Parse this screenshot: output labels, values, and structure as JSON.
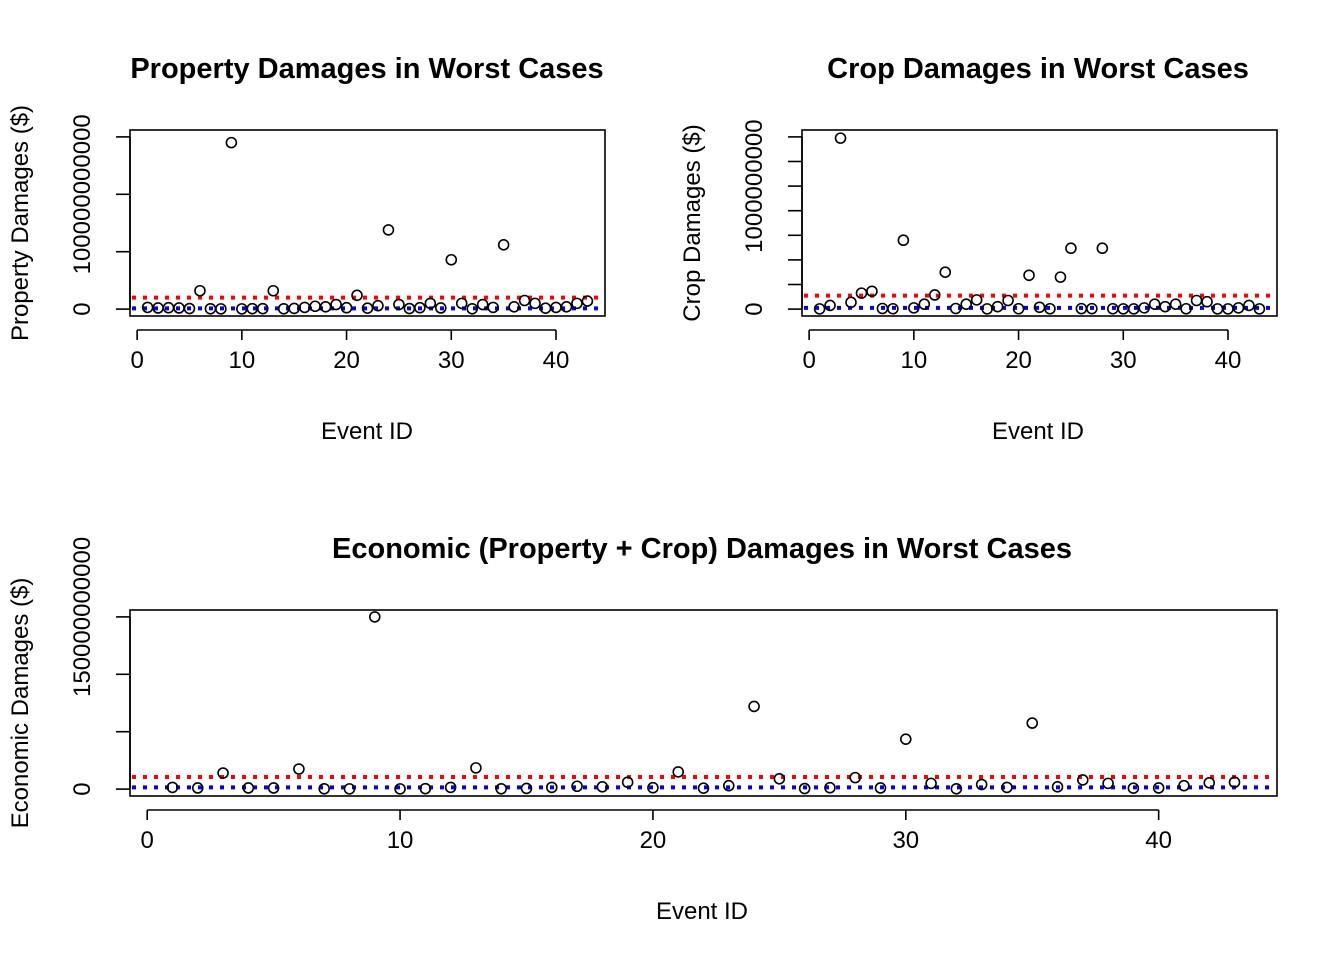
{
  "chart_data": [
    {
      "type": "scatter",
      "title": "Property Damages in Worst Cases",
      "xlabel": "Event ID",
      "ylabel": "Property Damages ($)",
      "x_ticks": [
        "0",
        "10",
        "20",
        "30",
        "40"
      ],
      "y_ticks": [
        "0",
        "100000000000"
      ],
      "x_tick_values": [
        0,
        10,
        20,
        30,
        40
      ],
      "y_tick_values": [
        0,
        50000000000,
        100000000000,
        150000000000
      ],
      "y_labeled_ticks": [
        0,
        100000000000
      ],
      "xlim": [
        1,
        43
      ],
      "ylim": [
        0,
        150000000000
      ],
      "grid": false,
      "series": [
        {
          "values": [
            [
              1,
              1500000000
            ],
            [
              2,
              1000000000
            ],
            [
              3,
              1200000000
            ],
            [
              4,
              1000000000
            ],
            [
              5,
              500000000
            ],
            [
              6,
              16000000000
            ],
            [
              7,
              300000000
            ],
            [
              8,
              200000000
            ],
            [
              9,
              145000000000
            ],
            [
              10,
              200000000
            ],
            [
              11,
              400000000
            ],
            [
              12,
              400000000
            ],
            [
              13,
              16000000000
            ],
            [
              14,
              300000000
            ],
            [
              15,
              600000000
            ],
            [
              16,
              1500000000
            ],
            [
              17,
              2500000000
            ],
            [
              18,
              2000000000
            ],
            [
              19,
              4000000000
            ],
            [
              20,
              1200000000
            ],
            [
              21,
              12000000000
            ],
            [
              22,
              800000000
            ],
            [
              23,
              3000000000
            ],
            [
              24,
              69000000000
            ],
            [
              25,
              4000000000
            ],
            [
              26,
              500000000
            ],
            [
              27,
              1200000000
            ],
            [
              28,
              5000000000
            ],
            [
              29,
              1000000000
            ],
            [
              30,
              43000000000
            ],
            [
              31,
              5000000000
            ],
            [
              32,
              300000000
            ],
            [
              33,
              4000000000
            ],
            [
              34,
              1500000000
            ],
            [
              35,
              56000000000
            ],
            [
              36,
              2000000000
            ],
            [
              37,
              7500000000
            ],
            [
              38,
              5000000000
            ],
            [
              39,
              800000000
            ],
            [
              40,
              1500000000
            ],
            [
              41,
              2000000000
            ],
            [
              42,
              5000000000
            ],
            [
              43,
              7000000000
            ]
          ]
        }
      ],
      "reference_lines": [
        {
          "y": 10000000000,
          "color": "#ff0000",
          "style": "dotted"
        },
        {
          "y": 600000000,
          "color": "#0000ee",
          "style": "dotted"
        }
      ]
    },
    {
      "type": "scatter",
      "title": "Crop Damages in Worst Cases",
      "xlabel": "Event ID",
      "ylabel": "Crop Damages ($)",
      "x_ticks": [
        "0",
        "10",
        "20",
        "30",
        "40"
      ],
      "y_ticks": [
        "0",
        "1000000000"
      ],
      "x_tick_values": [
        0,
        10,
        20,
        30,
        40
      ],
      "y_tick_values": [
        0,
        200000000,
        400000000,
        600000000,
        800000000,
        1000000000,
        1200000000,
        1400000000
      ],
      "y_labeled_ticks": [
        0,
        1000000000
      ],
      "xlim": [
        1,
        43
      ],
      "ylim": [
        0,
        1400000000
      ],
      "grid": false,
      "series": [
        {
          "values": [
            [
              1,
              2000000
            ],
            [
              2,
              30000000
            ],
            [
              3,
              1390000000
            ],
            [
              4,
              55000000
            ],
            [
              5,
              130000000
            ],
            [
              6,
              145000000
            ],
            [
              7,
              5000000
            ],
            [
              8,
              3000000
            ],
            [
              9,
              560000000
            ],
            [
              10,
              10000000
            ],
            [
              11,
              40000000
            ],
            [
              12,
              115000000
            ],
            [
              13,
              300000000
            ],
            [
              14,
              5000000
            ],
            [
              15,
              40000000
            ],
            [
              16,
              75000000
            ],
            [
              17,
              2000000
            ],
            [
              18,
              20000000
            ],
            [
              19,
              70000000
            ],
            [
              20,
              3000000
            ],
            [
              21,
              275000000
            ],
            [
              22,
              15000000
            ],
            [
              23,
              3000000
            ],
            [
              24,
              260000000
            ],
            [
              25,
              495000000
            ],
            [
              26,
              4000000
            ],
            [
              27,
              4000000
            ],
            [
              28,
              495000000
            ],
            [
              29,
              3000000
            ],
            [
              30,
              2000000
            ],
            [
              31,
              2000000
            ],
            [
              32,
              10000000
            ],
            [
              33,
              40000000
            ],
            [
              34,
              20000000
            ],
            [
              35,
              40000000
            ],
            [
              36,
              3000000
            ],
            [
              37,
              70000000
            ],
            [
              38,
              60000000
            ],
            [
              39,
              2000000
            ],
            [
              40,
              2000000
            ],
            [
              41,
              10000000
            ],
            [
              42,
              30000000
            ],
            [
              43,
              2000000
            ]
          ]
        }
      ],
      "reference_lines": [
        {
          "y": 110000000,
          "color": "#ff0000",
          "style": "dotted"
        },
        {
          "y": 10000000,
          "color": "#0000ee",
          "style": "dotted"
        }
      ]
    },
    {
      "type": "scatter",
      "title": "Economic (Property + Crop) Damages in Worst Cases",
      "xlabel": "Event ID",
      "ylabel": "Economic Damages ($)",
      "x_ticks": [
        "0",
        "10",
        "20",
        "30",
        "40"
      ],
      "y_ticks": [
        "0",
        "150000000000"
      ],
      "x_tick_values": [
        0,
        10,
        20,
        30,
        40
      ],
      "y_tick_values": [
        0,
        50000000000,
        100000000000,
        150000000000
      ],
      "y_labeled_ticks": [
        0,
        150000000000
      ],
      "xlim": [
        1,
        43
      ],
      "ylim": [
        0,
        150000000000
      ],
      "grid": false,
      "series": [
        {
          "values": [
            [
              1,
              1500000000
            ],
            [
              2,
              1000000000
            ],
            [
              3,
              14000000000
            ],
            [
              4,
              1000000000
            ],
            [
              5,
              1000000000
            ],
            [
              6,
              17500000000
            ],
            [
              7,
              300000000
            ],
            [
              8,
              200000000
            ],
            [
              9,
              150000000000
            ],
            [
              10,
              200000000
            ],
            [
              11,
              400000000
            ],
            [
              12,
              1500000000
            ],
            [
              13,
              18500000000
            ],
            [
              14,
              300000000
            ],
            [
              15,
              600000000
            ],
            [
              16,
              1500000000
            ],
            [
              17,
              2500000000
            ],
            [
              18,
              2000000000
            ],
            [
              19,
              6000000000
            ],
            [
              20,
              1200000000
            ],
            [
              21,
              15000000000
            ],
            [
              22,
              800000000
            ],
            [
              23,
              3000000000
            ],
            [
              24,
              72000000000
            ],
            [
              25,
              9000000000
            ],
            [
              26,
              500000000
            ],
            [
              27,
              1200000000
            ],
            [
              28,
              10000000000
            ],
            [
              29,
              1000000000
            ],
            [
              30,
              43500000000
            ],
            [
              31,
              5000000000
            ],
            [
              32,
              300000000
            ],
            [
              33,
              4000000000
            ],
            [
              34,
              1500000000
            ],
            [
              35,
              57500000000
            ],
            [
              36,
              2000000000
            ],
            [
              37,
              8000000000
            ],
            [
              38,
              5000000000
            ],
            [
              39,
              800000000
            ],
            [
              40,
              1000000000
            ],
            [
              41,
              3000000000
            ],
            [
              42,
              5500000000
            ],
            [
              43,
              6000000000
            ]
          ]
        }
      ],
      "reference_lines": [
        {
          "y": 10500000000,
          "color": "#ff0000",
          "style": "dotted"
        },
        {
          "y": 1500000000,
          "color": "#0000ee",
          "style": "dotted"
        }
      ]
    }
  ]
}
